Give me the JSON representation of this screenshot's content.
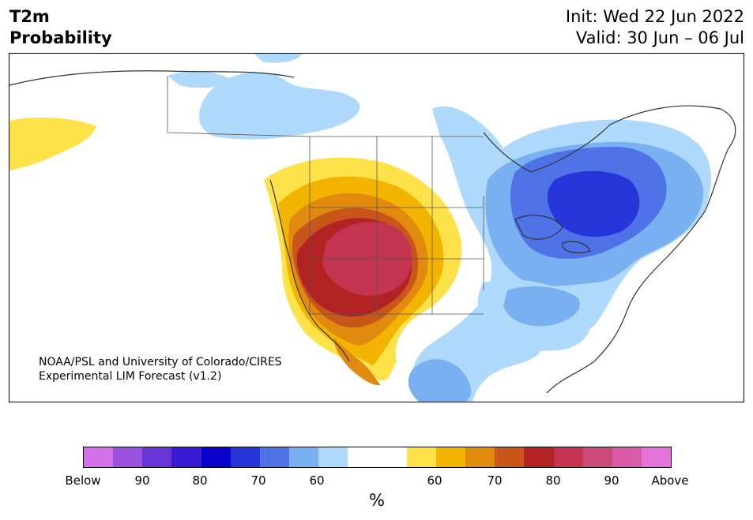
{
  "header": {
    "variable": "T2m",
    "product": "Probability",
    "init": "Init: Wed 22 Jun 2022",
    "valid": "Valid: 30 Jun – 06 Jul"
  },
  "credit": {
    "line1": "NOAA/PSL and University of Colorado/CIRES",
    "line2": "Experimental LIM Forecast (v1.2)"
  },
  "colorbar": {
    "unit": "%",
    "colors": [
      "#d471e8",
      "#9b52e0",
      "#6a36d8",
      "#3a1bd4",
      "#0a00cc",
      "#2736d8",
      "#4f72e6",
      "#78b0f2",
      "#aed9fb",
      "#ffffff",
      "#ffffff",
      "#ffe14a",
      "#f3b400",
      "#e08a10",
      "#c8561a",
      "#b22222",
      "#c2344f",
      "#cc4a78",
      "#d85ca6",
      "#e474da"
    ],
    "ticks": [
      "Below",
      "90",
      "80",
      "70",
      "60",
      "60",
      "70",
      "80",
      "90",
      "Above"
    ]
  },
  "legend_colors": {
    "cold_light": "#aed9fb",
    "cold_mid": "#78b0f2",
    "cold_strong": "#4f72e6",
    "cold_max": "#2736d8",
    "warm_light": "#ffe14a",
    "warm_mid": "#f3b400",
    "warm_orange": "#e08a10",
    "warm_dark": "#c8561a",
    "warm_red": "#b22222",
    "warm_max": "#c2344f"
  }
}
